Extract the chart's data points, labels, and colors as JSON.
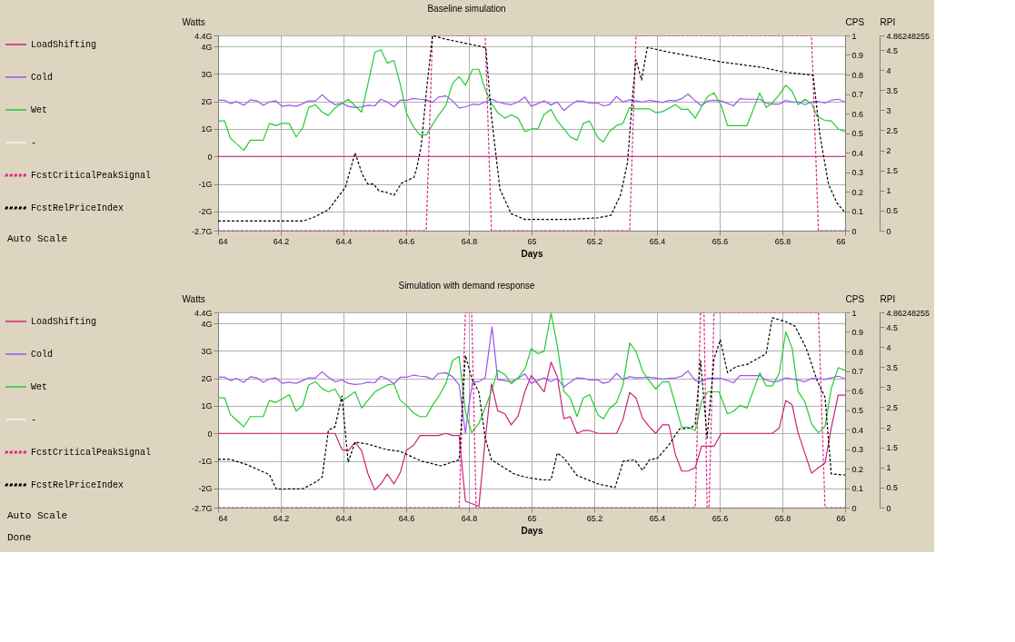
{
  "chart_data": [
    {
      "type": "line",
      "title": "Baseline simulation",
      "xlabel": "Days",
      "ylabel": "Watts",
      "y2label": "CPS",
      "y3label": "RPI",
      "legend": "left",
      "grid": true,
      "annotations": [
        "Auto Scale"
      ],
      "xlim": [
        64,
        66
      ],
      "xticks": [
        64,
        64.2,
        64.4,
        64.6,
        64.8,
        65,
        65.2,
        65.4,
        65.6,
        65.8,
        66
      ],
      "ylim": [
        -2.7,
        4.4
      ],
      "yticks": [
        {
          "value": -2.7,
          "label": "-2.7G"
        },
        {
          "value": -2,
          "label": "-2G"
        },
        {
          "value": -1,
          "label": "-1G"
        },
        0,
        {
          "value": 1,
          "label": "1G"
        },
        {
          "value": 2,
          "label": "2G"
        },
        {
          "value": 3,
          "label": "3G"
        },
        {
          "value": 4,
          "label": "4G"
        },
        {
          "value": 4.4,
          "label": "4.4G"
        }
      ],
      "y2lim": [
        0,
        1
      ],
      "y2ticks": [
        0,
        0.1,
        0.2,
        0.3,
        0.4,
        0.5,
        0.6,
        0.7,
        0.8,
        0.9,
        1
      ],
      "y3lim": [
        0,
        4.86248255
      ],
      "y3ticks": [
        0,
        0.5,
        1,
        1.5,
        2,
        2.5,
        3,
        3.5,
        4,
        4.5,
        4.86248255
      ],
      "series": [
        {
          "name": "LoadShifting",
          "color": "#cc2277",
          "line_style": "solid",
          "x": [
            64,
            66
          ],
          "values": [
            0,
            0
          ]
        },
        {
          "name": "Cold",
          "color": "#9955ee",
          "line_style": "solid",
          "x": [
            64,
            64.021,
            64.04,
            64.059,
            64.082,
            64.103,
            64.124,
            64.144,
            64.164,
            64.184,
            64.204,
            64.227,
            64.249,
            64.27,
            64.289,
            64.311,
            64.332,
            64.352,
            64.373,
            64.395,
            64.415,
            64.437,
            64.458,
            64.478,
            64.5,
            64.519,
            64.54,
            64.561,
            64.581,
            64.601,
            64.624,
            64.644,
            64.664,
            64.684,
            64.703,
            64.727,
            64.748,
            64.769,
            64.789,
            64.812,
            64.832,
            64.852,
            64.872,
            64.892,
            64.915,
            64.935,
            64.957,
            64.979,
            64.999,
            65.02,
            65.04,
            65.062,
            65.082,
            65.103,
            65.123,
            65.145,
            65.165,
            65.185,
            65.212,
            65.229,
            65.248,
            65.271,
            65.291,
            65.313,
            65.333,
            65.354,
            65.375,
            65.396,
            65.418,
            65.438,
            65.459,
            65.479,
            65.499,
            65.522,
            65.542,
            65.562,
            65.582,
            65.605,
            65.644,
            65.665,
            65.687,
            65.728,
            65.748,
            65.768,
            65.79,
            65.811,
            65.831,
            65.85,
            65.872,
            65.893,
            65.911,
            65.936,
            65.956,
            65.978,
            66
          ],
          "values": [
            2.04,
            2.04,
            1.92,
            2.0,
            1.86,
            2.06,
            2.02,
            1.86,
            1.98,
            2.02,
            1.82,
            1.86,
            1.82,
            1.92,
            2.02,
            2.02,
            2.24,
            2.04,
            1.88,
            1.94,
            1.82,
            1.78,
            1.8,
            1.86,
            1.84,
            2.08,
            1.98,
            1.8,
            2.04,
            2.04,
            2.11,
            2.08,
            2.06,
            1.96,
            2.16,
            2.2,
            2.02,
            1.76,
            1.8,
            1.9,
            1.88,
            1.98,
            2.08,
            1.98,
            1.92,
            1.88,
            1.98,
            2.16,
            1.82,
            1.92,
            2.02,
            1.87,
            1.98,
            1.67,
            1.86,
            2.02,
            2.0,
            1.94,
            1.94,
            1.84,
            1.88,
            2.18,
            1.98,
            2.06,
            2.02,
            1.98,
            2.04,
            2.0,
            1.96,
            2.04,
            2.02,
            2.1,
            2.27,
            2.02,
            1.84,
            2.02,
            2.04,
            2.02,
            1.84,
            2.1,
            2.08,
            2.08,
            1.94,
            1.9,
            1.9,
            2.04,
            1.98,
            1.98,
            1.88,
            1.98,
            2.0,
            1.94,
            2.04,
            2.08,
            1.98
          ]
        },
        {
          "name": "Wet",
          "color": "#22cc33",
          "line_style": "solid",
          "x": [
            64,
            64.021,
            64.039,
            64.082,
            64.103,
            64.144,
            64.164,
            64.184,
            64.204,
            64.227,
            64.249,
            64.27,
            64.289,
            64.311,
            64.332,
            64.352,
            64.373,
            64.415,
            64.458,
            64.478,
            64.5,
            64.519,
            64.54,
            64.561,
            64.581,
            64.601,
            64.624,
            64.644,
            64.664,
            64.684,
            64.703,
            64.727,
            64.748,
            64.769,
            64.789,
            64.812,
            64.832,
            64.852,
            64.872,
            64.892,
            64.915,
            64.935,
            64.957,
            64.979,
            64.999,
            65.02,
            65.04,
            65.062,
            65.082,
            65.103,
            65.123,
            65.145,
            65.165,
            65.185,
            65.212,
            65.229,
            65.248,
            65.271,
            65.291,
            65.313,
            65.333,
            65.375,
            65.396,
            65.418,
            65.459,
            65.479,
            65.499,
            65.522,
            65.544,
            65.562,
            65.582,
            65.605,
            65.625,
            65.687,
            65.728,
            65.748,
            65.768,
            65.79,
            65.811,
            65.831,
            65.85,
            65.872,
            65.893,
            65.911,
            65.936,
            65.956,
            65.978,
            66
          ],
          "values": [
            1.29,
            1.29,
            0.67,
            0.22,
            0.59,
            0.59,
            1.2,
            1.12,
            1.2,
            1.2,
            0.71,
            1.04,
            1.78,
            1.88,
            1.61,
            1.49,
            1.76,
            2.08,
            1.61,
            2.63,
            3.78,
            3.88,
            3.39,
            3.49,
            2.63,
            1.57,
            1.06,
            0.78,
            0.78,
            1.16,
            1.49,
            1.86,
            2.66,
            2.9,
            2.59,
            3.17,
            3.17,
            2.43,
            1.94,
            1.59,
            1.39,
            1.51,
            1.39,
            0.9,
            1.0,
            1.0,
            1.53,
            1.71,
            1.29,
            1.0,
            0.71,
            0.59,
            1.2,
            1.29,
            0.67,
            0.52,
            0.9,
            1.12,
            1.2,
            1.78,
            1.73,
            1.73,
            1.59,
            1.63,
            1.88,
            1.71,
            1.71,
            1.39,
            1.84,
            2.18,
            2.31,
            1.84,
            1.12,
            1.12,
            2.31,
            1.78,
            1.94,
            2.24,
            2.59,
            2.37,
            1.88,
            2.08,
            1.92,
            1.45,
            1.31,
            1.29,
            1.0,
            0.9
          ]
        },
        {
          "name": "-",
          "color": "#f4f4f4",
          "line_style": "solid"
        },
        {
          "name": "FcstCriticalPeakSignal",
          "color": "#dd2288",
          "line_style": "dashed",
          "axis": "y2",
          "x": [
            64,
            64.664,
            64.684,
            64.852,
            64.872,
            65.313,
            65.333,
            65.893,
            65.915,
            66
          ],
          "values": [
            0,
            0,
            1,
            1,
            0,
            0,
            1,
            1,
            0,
            0
          ]
        },
        {
          "name": "FcstRelPriceIndex",
          "color": "#000000",
          "line_style": "dashed",
          "axis": "y3",
          "x": [
            64,
            64.272,
            64.307,
            64.352,
            64.406,
            64.437,
            64.46,
            64.478,
            64.496,
            64.513,
            64.54,
            64.561,
            64.585,
            64.625,
            64.634,
            64.648,
            64.666,
            64.684,
            64.72,
            64.854,
            64.872,
            64.899,
            64.935,
            64.979,
            65.033,
            65.123,
            65.212,
            65.253,
            65.284,
            65.306,
            65.324,
            65.333,
            65.351,
            65.369,
            65.383,
            65.436,
            65.526,
            65.607,
            65.741,
            65.804,
            65.898,
            65.907,
            65.92,
            65.947,
            65.974,
            66
          ],
          "values": [
            0.24,
            0.24,
            0.34,
            0.52,
            1.08,
            1.94,
            1.4,
            1.16,
            1.16,
            0.99,
            0.95,
            0.88,
            1.18,
            1.33,
            1.57,
            2.11,
            3.58,
            4.86,
            4.78,
            4.56,
            2.85,
            1.03,
            0.42,
            0.28,
            0.28,
            0.28,
            0.32,
            0.38,
            0.89,
            1.7,
            3.52,
            4.26,
            3.75,
            4.56,
            4.54,
            4.45,
            4.32,
            4.2,
            4.06,
            3.95,
            3.87,
            3.25,
            2.37,
            1.16,
            0.69,
            0.45
          ]
        }
      ]
    },
    {
      "type": "line",
      "title": "Simulation with demand response",
      "xlabel": "Days",
      "ylabel": "Watts",
      "y2label": "CPS",
      "y3label": "RPI",
      "legend": "left",
      "grid": true,
      "annotations": [
        "Auto Scale",
        "Done"
      ],
      "xlim": [
        64,
        66
      ],
      "xticks": [
        64,
        64.2,
        64.4,
        64.6,
        64.8,
        65,
        65.2,
        65.4,
        65.6,
        65.8,
        66
      ],
      "ylim": [
        -2.7,
        4.4
      ],
      "yticks": [
        {
          "value": -2.7,
          "label": "-2.7G"
        },
        {
          "value": -2,
          "label": "-2G"
        },
        {
          "value": -1,
          "label": "-1G"
        },
        0,
        {
          "value": 1,
          "label": "1G"
        },
        {
          "value": 2,
          "label": "2G"
        },
        {
          "value": 3,
          "label": "3G"
        },
        {
          "value": 4,
          "label": "4G"
        },
        {
          "value": 4.4,
          "label": "4.4G"
        }
      ],
      "y2lim": [
        0,
        1
      ],
      "y2ticks": [
        0,
        0.1,
        0.2,
        0.3,
        0.4,
        0.5,
        0.6,
        0.7,
        0.8,
        0.9,
        1
      ],
      "y3lim": [
        0,
        4.86248255
      ],
      "y3ticks": [
        0,
        0.5,
        1,
        1.5,
        2,
        2.5,
        3,
        3.5,
        4,
        4.5,
        4.86248255
      ],
      "series": [
        {
          "name": "LoadShifting",
          "color": "#cc2277",
          "line_style": "solid",
          "x": [
            64,
            64.373,
            64.395,
            64.415,
            64.437,
            64.458,
            64.478,
            64.5,
            64.519,
            64.54,
            64.561,
            64.581,
            64.601,
            64.624,
            64.644,
            64.703,
            64.727,
            64.748,
            64.769,
            64.789,
            64.832,
            64.852,
            64.872,
            64.892,
            64.915,
            64.935,
            64.957,
            64.979,
            64.999,
            65.02,
            65.04,
            65.062,
            65.082,
            65.103,
            65.123,
            65.145,
            65.165,
            65.185,
            65.212,
            65.229,
            65.271,
            65.291,
            65.313,
            65.333,
            65.354,
            65.375,
            65.396,
            65.418,
            65.438,
            65.459,
            65.479,
            65.499,
            65.522,
            65.542,
            65.582,
            65.605,
            65.768,
            65.79,
            65.811,
            65.831,
            65.85,
            65.872,
            65.893,
            65.915,
            65.936,
            65.956,
            65.978,
            66
          ],
          "values": [
            0,
            0,
            -0.59,
            -0.63,
            -0.33,
            -0.63,
            -1.47,
            -2.06,
            -1.84,
            -1.48,
            -1.84,
            -1.43,
            -0.61,
            -0.43,
            -0.08,
            -0.08,
            0,
            -0.08,
            -0.08,
            -2.47,
            -2.65,
            -0.24,
            1.8,
            0.82,
            0.71,
            0.31,
            0.63,
            1.53,
            2.1,
            1.8,
            1.51,
            2.59,
            2.06,
            0.53,
            0.61,
            0,
            0.1,
            0.1,
            0,
            0,
            0,
            0.49,
            1.49,
            1.29,
            0.55,
            0.25,
            0,
            0.31,
            0.31,
            -0.78,
            -1.37,
            -1.37,
            -1.25,
            -0.47,
            -0.47,
            0,
            0,
            0.2,
            1.2,
            1.04,
            0.02,
            -0.73,
            -1.45,
            -1.25,
            -1.08,
            0.2,
            1.39,
            1.39
          ]
        },
        {
          "name": "Cold",
          "color": "#9955ee",
          "line_style": "solid",
          "x": [
            64,
            64.021,
            64.04,
            64.059,
            64.082,
            64.103,
            64.124,
            64.144,
            64.164,
            64.184,
            64.204,
            64.227,
            64.249,
            64.27,
            64.289,
            64.311,
            64.332,
            64.352,
            64.373,
            64.395,
            64.415,
            64.437,
            64.458,
            64.478,
            64.5,
            64.519,
            64.54,
            64.561,
            64.581,
            64.601,
            64.624,
            64.644,
            64.664,
            64.684,
            64.703,
            64.727,
            64.748,
            64.769,
            64.789,
            64.8,
            64.812,
            64.832,
            64.852,
            64.874,
            64.892,
            64.915,
            64.935,
            64.957,
            64.979,
            64.999,
            65.02,
            65.04,
            65.062,
            65.082,
            65.103,
            65.123,
            65.145,
            65.165,
            65.185,
            65.212,
            65.229,
            65.248,
            65.271,
            65.291,
            65.313,
            65.333,
            65.375,
            65.418,
            65.459,
            65.479,
            65.499,
            65.522,
            65.542,
            65.562,
            65.605,
            65.644,
            65.665,
            65.728,
            65.748,
            65.768,
            65.79,
            65.811,
            65.85,
            65.872,
            65.893,
            65.936,
            65.956,
            65.978,
            66
          ],
          "values": [
            2.04,
            2.04,
            1.92,
            2.0,
            1.86,
            2.06,
            2.02,
            1.86,
            1.98,
            2.02,
            1.82,
            1.86,
            1.82,
            1.92,
            2.02,
            2.02,
            2.24,
            2.04,
            1.88,
            1.94,
            1.82,
            1.78,
            1.8,
            1.86,
            1.84,
            2.08,
            1.98,
            1.8,
            2.04,
            2.04,
            2.12,
            2.08,
            2.06,
            1.96,
            2.18,
            2.2,
            2.06,
            1.76,
            0,
            1.02,
            1.88,
            1.88,
            2.02,
            3.88,
            1.96,
            1.92,
            1.88,
            2.0,
            2.16,
            1.82,
            1.92,
            2.02,
            1.88,
            2.0,
            1.69,
            1.86,
            2.02,
            2.0,
            1.94,
            1.94,
            1.82,
            1.88,
            2.18,
            1.96,
            2.06,
            2.02,
            2.04,
            1.98,
            2.02,
            2.08,
            2.27,
            1.92,
            1.88,
            2.0,
            2.0,
            1.84,
            2.1,
            2.1,
            1.94,
            1.88,
            1.9,
            2.02,
            1.94,
            1.88,
            2.0,
            1.96,
            2.02,
            2.08,
            1.98
          ]
        },
        {
          "name": "Wet",
          "color": "#22cc33",
          "line_style": "solid",
          "x": [
            64,
            64.021,
            64.039,
            64.082,
            64.103,
            64.144,
            64.164,
            64.184,
            64.227,
            64.249,
            64.27,
            64.289,
            64.311,
            64.332,
            64.352,
            64.373,
            64.395,
            64.437,
            64.458,
            64.5,
            64.54,
            64.561,
            64.581,
            64.601,
            64.624,
            64.644,
            64.664,
            64.684,
            64.703,
            64.727,
            64.748,
            64.769,
            64.789,
            64.809,
            64.832,
            64.852,
            64.872,
            64.892,
            64.915,
            64.935,
            64.957,
            64.979,
            64.999,
            65.02,
            65.04,
            65.062,
            65.082,
            65.103,
            65.123,
            65.145,
            65.165,
            65.185,
            65.212,
            65.229,
            65.248,
            65.271,
            65.291,
            65.313,
            65.333,
            65.354,
            65.375,
            65.396,
            65.418,
            65.438,
            65.459,
            65.479,
            65.499,
            65.522,
            65.542,
            65.562,
            65.598,
            65.625,
            65.644,
            65.665,
            65.687,
            65.728,
            65.748,
            65.768,
            65.79,
            65.811,
            65.831,
            65.85,
            65.872,
            65.893,
            65.915,
            65.936,
            65.956,
            65.978,
            66
          ],
          "values": [
            1.29,
            1.29,
            0.69,
            0.24,
            0.61,
            0.61,
            1.2,
            1.12,
            1.4,
            0.81,
            1.02,
            1.76,
            1.88,
            1.63,
            1.51,
            1.61,
            1.18,
            1.51,
            0.92,
            1.51,
            1.76,
            1.8,
            1.2,
            1.02,
            0.73,
            0.61,
            0.61,
            1.02,
            1.33,
            1.82,
            2.65,
            2.8,
            0.78,
            0.02,
            0.37,
            0.94,
            1.53,
            2.29,
            2.14,
            1.8,
            2.02,
            2.35,
            3.08,
            2.9,
            2.98,
            4.37,
            3.2,
            1.53,
            1.29,
            0.61,
            1.29,
            1.41,
            0.67,
            0.53,
            0.9,
            1.12,
            1.73,
            3.29,
            2.98,
            2.27,
            1.92,
            1.61,
            1.88,
            1.88,
            1.04,
            0.22,
            0.22,
            0.1,
            1.18,
            1.51,
            1.51,
            0.71,
            0.8,
            1.02,
            0.92,
            2.2,
            1.73,
            1.73,
            2.18,
            3.69,
            3.1,
            1.53,
            1.14,
            0.35,
            0.02,
            0.25,
            1.63,
            2.39,
            2.29
          ]
        },
        {
          "name": "-",
          "color": "#f4f4f4",
          "line_style": "solid"
        },
        {
          "name": "FcstCriticalPeakSignal",
          "color": "#dd2288",
          "line_style": "dashed",
          "axis": "y2",
          "x": [
            64,
            64.769,
            64.789,
            64.809,
            64.823,
            65.522,
            65.539,
            65.55,
            65.56,
            65.566,
            65.582,
            65.915,
            65.936,
            66
          ],
          "values": [
            0,
            0,
            1,
            1,
            0,
            0,
            1,
            1,
            0,
            0,
            1,
            1,
            0,
            0
          ]
        },
        {
          "name": "FcstRelPriceIndex",
          "color": "#000000",
          "line_style": "dashed",
          "axis": "y3",
          "x": [
            64,
            64.039,
            64.092,
            64.164,
            64.186,
            64.272,
            64.316,
            64.332,
            64.352,
            64.373,
            64.395,
            64.415,
            64.437,
            64.478,
            64.54,
            64.581,
            64.648,
            64.711,
            64.769,
            64.789,
            64.809,
            64.832,
            64.852,
            64.872,
            64.944,
            64.979,
            65.033,
            65.062,
            65.082,
            65.103,
            65.145,
            65.212,
            65.266,
            65.293,
            65.329,
            65.354,
            65.376,
            65.401,
            65.436,
            65.472,
            65.508,
            65.522,
            65.539,
            65.56,
            65.582,
            65.602,
            65.625,
            65.652,
            65.688,
            65.748,
            65.768,
            65.811,
            65.84,
            65.876,
            65.911,
            65.936,
            65.956,
            66
          ],
          "values": [
            1.2,
            1.2,
            1.07,
            0.82,
            0.46,
            0.47,
            0.66,
            0.76,
            1.93,
            2.01,
            2.78,
            1.13,
            1.63,
            1.58,
            1.44,
            1.4,
            1.16,
            1.04,
            1.19,
            3.79,
            3.22,
            2.87,
            1.74,
            1.19,
            0.84,
            0.76,
            0.69,
            0.69,
            1.36,
            1.24,
            0.8,
            0.59,
            0.5,
            1.16,
            1.19,
            0.93,
            1.19,
            1.23,
            1.54,
            1.96,
            1.98,
            2.08,
            3.66,
            1.74,
            3.7,
            4.18,
            3.36,
            3.51,
            3.57,
            3.83,
            4.73,
            4.63,
            4.52,
            3.97,
            3.16,
            2.75,
            0.84,
            0.81
          ]
        }
      ]
    }
  ]
}
